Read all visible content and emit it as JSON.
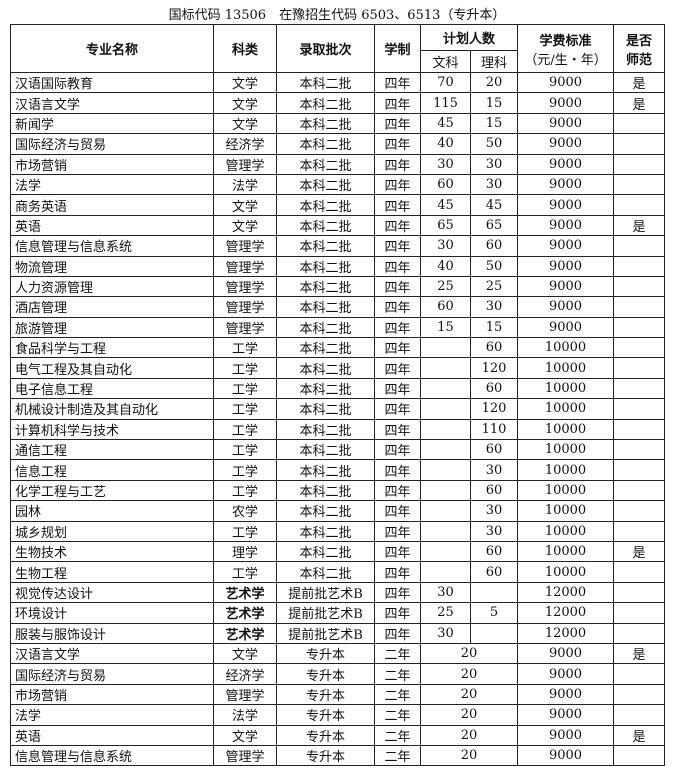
{
  "caption": "国标代码 13506　在豫招生代码 6503、6513（专升本）",
  "headers": {
    "name": "专业名称",
    "category": "科类",
    "batch": "录取批次",
    "duration": "学制",
    "plan": "计划人数",
    "plan_arts": "文科",
    "plan_science": "理科",
    "fee_line1": "学费标准",
    "fee_line2": "（元/生・年）",
    "normal_line1": "是否",
    "normal_line2": "师范"
  },
  "rows": [
    {
      "name": "汉语国际教育",
      "category": "文学",
      "batch": "本科二批",
      "duration": "四年",
      "arts": "70",
      "science": "20",
      "fee": "9000",
      "normal": "是"
    },
    {
      "name": "汉语言文学",
      "category": "文学",
      "batch": "本科二批",
      "duration": "四年",
      "arts": "115",
      "science": "15",
      "fee": "9000",
      "normal": "是"
    },
    {
      "name": "新闻学",
      "category": "文学",
      "batch": "本科二批",
      "duration": "四年",
      "arts": "45",
      "science": "15",
      "fee": "9000",
      "normal": ""
    },
    {
      "name": "国际经济与贸易",
      "category": "经济学",
      "batch": "本科二批",
      "duration": "四年",
      "arts": "40",
      "science": "50",
      "fee": "9000",
      "normal": ""
    },
    {
      "name": "市场营销",
      "category": "管理学",
      "batch": "本科二批",
      "duration": "四年",
      "arts": "30",
      "science": "30",
      "fee": "9000",
      "normal": ""
    },
    {
      "name": "法学",
      "category": "法学",
      "batch": "本科二批",
      "duration": "四年",
      "arts": "60",
      "science": "30",
      "fee": "9000",
      "normal": ""
    },
    {
      "name": "商务英语",
      "category": "文学",
      "batch": "本科二批",
      "duration": "四年",
      "arts": "45",
      "science": "45",
      "fee": "9000",
      "normal": ""
    },
    {
      "name": "英语",
      "category": "文学",
      "batch": "本科二批",
      "duration": "四年",
      "arts": "65",
      "science": "65",
      "fee": "9000",
      "normal": "是"
    },
    {
      "name": "信息管理与信息系统",
      "category": "管理学",
      "batch": "本科二批",
      "duration": "四年",
      "arts": "30",
      "science": "60",
      "fee": "9000",
      "normal": ""
    },
    {
      "name": "物流管理",
      "category": "管理学",
      "batch": "本科二批",
      "duration": "四年",
      "arts": "40",
      "science": "50",
      "fee": "9000",
      "normal": ""
    },
    {
      "name": "人力资源管理",
      "category": "管理学",
      "batch": "本科二批",
      "duration": "四年",
      "arts": "25",
      "science": "25",
      "fee": "9000",
      "normal": ""
    },
    {
      "name": "酒店管理",
      "category": "管理学",
      "batch": "本科二批",
      "duration": "四年",
      "arts": "60",
      "science": "30",
      "fee": "9000",
      "normal": ""
    },
    {
      "name": "旅游管理",
      "category": "管理学",
      "batch": "本科二批",
      "duration": "四年",
      "arts": "15",
      "science": "15",
      "fee": "9000",
      "normal": ""
    },
    {
      "name": "食品科学与工程",
      "category": "工学",
      "batch": "本科二批",
      "duration": "四年",
      "arts": "",
      "science": "60",
      "fee": "10000",
      "normal": ""
    },
    {
      "name": "电气工程及其自动化",
      "category": "工学",
      "batch": "本科二批",
      "duration": "四年",
      "arts": "",
      "science": "120",
      "fee": "10000",
      "normal": ""
    },
    {
      "name": "电子信息工程",
      "category": "工学",
      "batch": "本科二批",
      "duration": "四年",
      "arts": "",
      "science": "60",
      "fee": "10000",
      "normal": ""
    },
    {
      "name": "机械设计制造及其自动化",
      "category": "工学",
      "batch": "本科二批",
      "duration": "四年",
      "arts": "",
      "science": "120",
      "fee": "10000",
      "normal": ""
    },
    {
      "name": "计算机科学与技术",
      "category": "工学",
      "batch": "本科二批",
      "duration": "四年",
      "arts": "",
      "science": "110",
      "fee": "10000",
      "normal": ""
    },
    {
      "name": "通信工程",
      "category": "工学",
      "batch": "本科二批",
      "duration": "四年",
      "arts": "",
      "science": "60",
      "fee": "10000",
      "normal": ""
    },
    {
      "name": "信息工程",
      "category": "工学",
      "batch": "本科二批",
      "duration": "四年",
      "arts": "",
      "science": "30",
      "fee": "10000",
      "normal": ""
    },
    {
      "name": "化学工程与工艺",
      "category": "工学",
      "batch": "本科二批",
      "duration": "四年",
      "arts": "",
      "science": "60",
      "fee": "10000",
      "normal": ""
    },
    {
      "name": "园林",
      "category": "农学",
      "batch": "本科二批",
      "duration": "四年",
      "arts": "",
      "science": "30",
      "fee": "10000",
      "normal": ""
    },
    {
      "name": "城乡规划",
      "category": "工学",
      "batch": "本科二批",
      "duration": "四年",
      "arts": "",
      "science": "30",
      "fee": "10000",
      "normal": ""
    },
    {
      "name": "生物技术",
      "category": "理学",
      "batch": "本科二批",
      "duration": "四年",
      "arts": "",
      "science": "60",
      "fee": "10000",
      "normal": "是"
    },
    {
      "name": "生物工程",
      "category": "工学",
      "batch": "本科二批",
      "duration": "四年",
      "arts": "",
      "science": "60",
      "fee": "10000",
      "normal": ""
    },
    {
      "name": "视觉传达设计",
      "category": "艺术学",
      "batch": "提前批艺术B",
      "duration": "四年",
      "arts": "30",
      "science": "",
      "fee": "12000",
      "normal": "",
      "bold": true
    },
    {
      "name": "环境设计",
      "category": "艺术学",
      "batch": "提前批艺术B",
      "duration": "四年",
      "arts": "25",
      "science": "5",
      "fee": "12000",
      "normal": "",
      "bold": true
    },
    {
      "name": "服装与服饰设计",
      "category": "艺术学",
      "batch": "提前批艺术B",
      "duration": "四年",
      "arts": "30",
      "science": "",
      "fee": "12000",
      "normal": "",
      "bold": true
    },
    {
      "name": "汉语言文学",
      "category": "文学",
      "batch": "专升本",
      "duration": "二年",
      "plan": "20",
      "fee": "9000",
      "normal": "是"
    },
    {
      "name": "国际经济与贸易",
      "category": "经济学",
      "batch": "专升本",
      "duration": "二年",
      "plan": "20",
      "fee": "9000",
      "normal": ""
    },
    {
      "name": "市场营销",
      "category": "管理学",
      "batch": "专升本",
      "duration": "二年",
      "plan": "20",
      "fee": "9000",
      "normal": ""
    },
    {
      "name": "法学",
      "category": "法学",
      "batch": "专升本",
      "duration": "二年",
      "plan": "20",
      "fee": "9000",
      "normal": ""
    },
    {
      "name": "英语",
      "category": "文学",
      "batch": "专升本",
      "duration": "二年",
      "plan": "20",
      "fee": "9000",
      "normal": "是"
    },
    {
      "name": "信息管理与信息系统",
      "category": "管理学",
      "batch": "专升本",
      "duration": "二年",
      "plan": "20",
      "fee": "9000",
      "normal": ""
    }
  ]
}
